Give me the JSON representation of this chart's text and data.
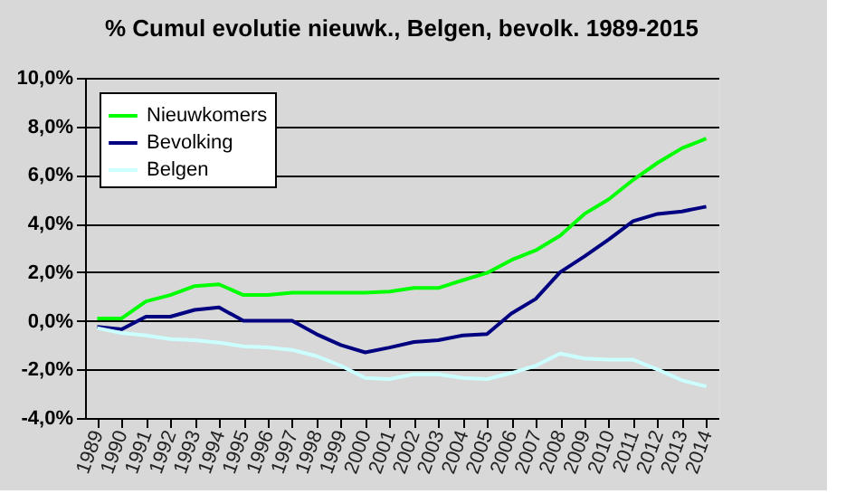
{
  "chart_data": {
    "type": "line",
    "title": "% Cumul evolutie nieuwk., Belgen, bevolk.  1989-2015",
    "categories": [
      "1989",
      "1990",
      "1991",
      "1992",
      "1993",
      "1994",
      "1995",
      "1996",
      "1997",
      "1998",
      "1999",
      "2000",
      "2001",
      "2002",
      "2003",
      "2004",
      "2005",
      "2006",
      "2007",
      "2008",
      "2009",
      "2010",
      "2011",
      "2012",
      "2013",
      "2014"
    ],
    "series": [
      {
        "name": "Nieuwkomers",
        "color": "#00ff00",
        "values": [
          0.1,
          0.1,
          0.8,
          1.06,
          1.43,
          1.5,
          1.06,
          1.06,
          1.16,
          1.16,
          1.16,
          1.16,
          1.2,
          1.35,
          1.35,
          1.67,
          1.97,
          2.5,
          2.9,
          3.5,
          4.4,
          5.0,
          5.8,
          6.5,
          7.1,
          7.5
        ]
      },
      {
        "name": "Bevolking",
        "color": "#000080",
        "values": [
          -0.25,
          -0.35,
          0.17,
          0.17,
          0.45,
          0.55,
          0,
          0,
          0,
          -0.55,
          -1.0,
          -1.3,
          -1.1,
          -0.87,
          -0.8,
          -0.6,
          -0.55,
          0.3,
          0.9,
          2.0,
          2.65,
          3.35,
          4.1,
          4.4,
          4.5,
          4.7
        ]
      },
      {
        "name": "Belgen",
        "color": "#ccffff",
        "values": [
          -0.3,
          -0.5,
          -0.6,
          -0.75,
          -0.8,
          -0.9,
          -1.05,
          -1.1,
          -1.2,
          -1.45,
          -1.85,
          -2.35,
          -2.4,
          -2.2,
          -2.2,
          -2.35,
          -2.4,
          -2.15,
          -1.85,
          -1.35,
          -1.55,
          -1.6,
          -1.6,
          -2.0,
          -2.45,
          -2.7
        ]
      }
    ],
    "ylim": [
      -4,
      10
    ],
    "yticks": [
      {
        "value": -4,
        "label": "-4,0%"
      },
      {
        "value": -2,
        "label": "-2,0%"
      },
      {
        "value": 0,
        "label": "0,0%"
      },
      {
        "value": 2,
        "label": "2,0%"
      },
      {
        "value": 4,
        "label": "4,0%"
      },
      {
        "value": 6,
        "label": "6,0%"
      },
      {
        "value": 8,
        "label": "8,0%"
      },
      {
        "value": 10,
        "label": "10,0%"
      }
    ],
    "grid": "y",
    "legend": "top left",
    "marker": "none",
    "line_style": "solid"
  }
}
